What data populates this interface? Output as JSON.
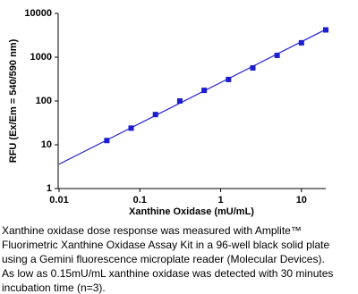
{
  "chart_data": {
    "type": "scatter",
    "x": [
      0.039,
      0.078,
      0.156,
      0.3125,
      0.625,
      1.25,
      2.5,
      5,
      10,
      20
    ],
    "series": [
      {
        "color": "#1c1cd0",
        "values": [
          12.5,
          24,
          49,
          100,
          175,
          310,
          570,
          1100,
          2130,
          4200
        ]
      }
    ],
    "fit_line": {
      "color": "#1c1cd0",
      "x": [
        0.01,
        20
      ],
      "values": [
        3.6,
        4300
      ]
    },
    "xlabel": "Xanthine Oxidase (mU/mL)",
    "ylabel": "RFU (Ex/Em = 540/590 nm)",
    "xscale": "log",
    "yscale": "log",
    "xlim": [
      0.01,
      20
    ],
    "ylim": [
      1,
      10000
    ],
    "xticks": [
      0.01,
      0.1,
      1,
      10
    ],
    "yticks": [
      1,
      10,
      100,
      1000,
      10000
    ]
  },
  "caption": [
    "Xanthine oxidase dose response was measured with Amplite™",
    "Fluorimetric Xanthine Oxidase Assay Kit in a 96-well black solid plate",
    "using a Gemini fluorescence microplate reader (Molecular Devices).",
    "As low as 0.15mU/mL xanthine oxidase was detected with 30 minutes",
    "incubation time (n=3)."
  ]
}
